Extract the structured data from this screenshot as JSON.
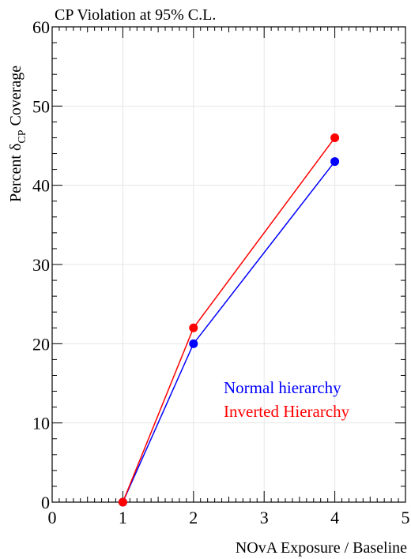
{
  "chart_data": {
    "type": "line",
    "title": "CP Violation at 95% C.L.",
    "xlabel": "NOvA Exposure / Baseline",
    "ylabel": {
      "prefix": "Percent ",
      "symbol": "δ",
      "subscript": "CP",
      "suffix": " Coverage"
    },
    "xlim": [
      0,
      5
    ],
    "ylim": [
      0,
      60
    ],
    "xticks": [
      0,
      1,
      2,
      3,
      4,
      5
    ],
    "yticks": [
      0,
      10,
      20,
      30,
      40,
      50,
      60
    ],
    "grid": true,
    "legend_position": "bottom-right",
    "series": [
      {
        "name": "Normal hierarchy",
        "color": "#0000ff",
        "x": [
          1,
          2,
          4
        ],
        "y": [
          0,
          20,
          43
        ]
      },
      {
        "name": "Inverted Hierarchy",
        "color": "#ff0000",
        "x": [
          1,
          2,
          4
        ],
        "y": [
          0,
          22,
          46
        ]
      }
    ]
  }
}
